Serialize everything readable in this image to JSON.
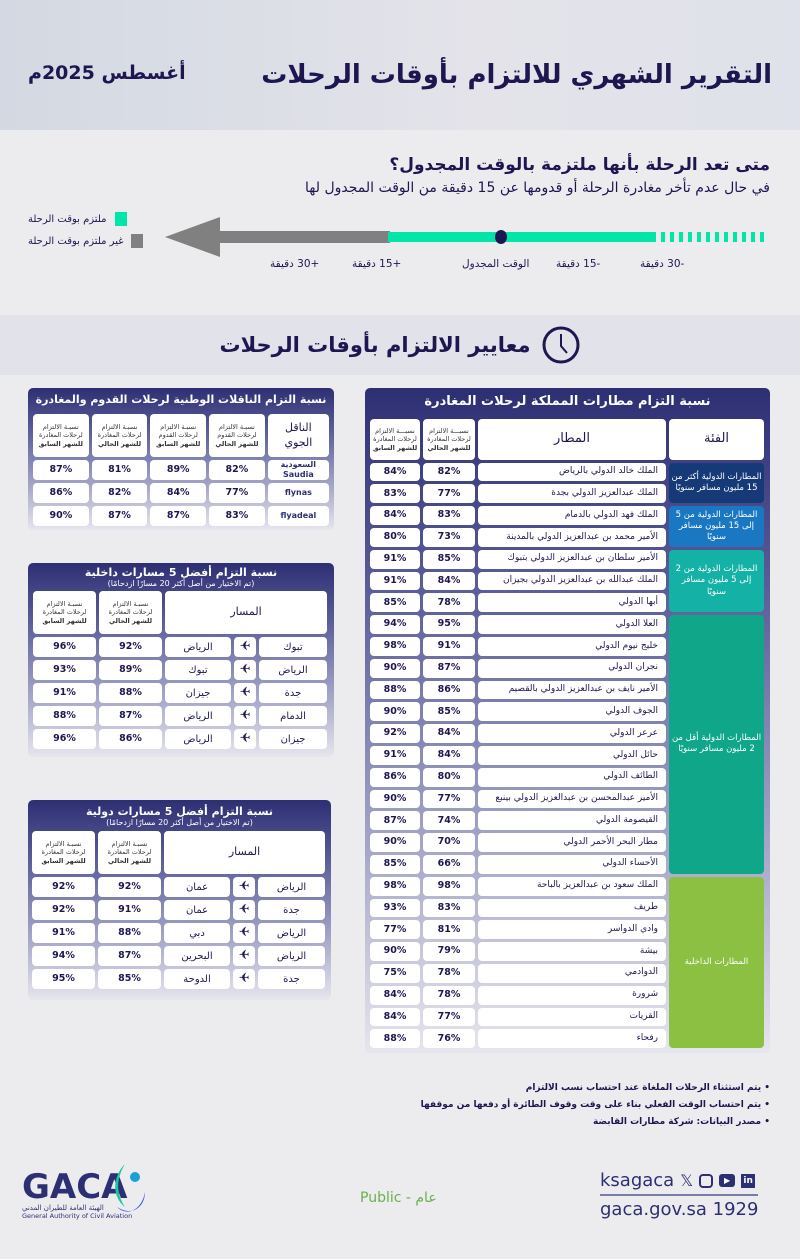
{
  "header": {
    "title": "التقرير الشهري للالتزام بأوقات الرحلات",
    "month": "أغسطس 2025م"
  },
  "definition": {
    "question": "متى تعد الرحلة بأنها ملتزمة بالوقت المجدول؟",
    "answer": "في حال عدم تأخر مغادرة الرحلة أو قدومها عن 15 دقيقة من الوقت المجدول لها",
    "legend": [
      {
        "label": "ملتزم بوقت الرحلة",
        "color": "#00e5a8"
      },
      {
        "label": "غير ملتزم بوقت الرحلة",
        "color": "#808080"
      }
    ],
    "timeline": {
      "plus30": "+30 دقيقة",
      "plus15": "+15 دقيقة",
      "scheduled": "الوقت المجدول",
      "minus15": "-15 دقيقة",
      "minus30": "-30 دقيقة"
    }
  },
  "section_title": "معايير الالتزام بأوقات الرحلات",
  "airports": {
    "title": "نسبة التزام مطارات المملكة لرحلات المغادرة",
    "headers": {
      "category": "الفئة",
      "airport": "المطار",
      "current": [
        "نسبـــة الالتزام",
        "لرحلات المغادرة",
        "للشهر الحالي"
      ],
      "previous": [
        "نسبـــة الالتزام",
        "لرحلات المغادرة",
        "للشهر السابق"
      ]
    },
    "categories": [
      {
        "label": "المطارات الدولية أكثر من 15 مليون مسافر سنويًا",
        "color": "#163a78",
        "rows": 2
      },
      {
        "label": "المطارات الدولية من 5 إلى 15 مليون مسافر سنويًا",
        "color": "#1a78c2",
        "rows": 2
      },
      {
        "label": "المطارات الدولية من 2 إلى 5 مليون مسافر سنويًا",
        "color": "#14b2a6",
        "rows": 3
      },
      {
        "label": "المطارات الدولية أقل من 2 مليون مسافر سنويًا",
        "color": "#10a68a",
        "rows": 12
      },
      {
        "label": "المطارات الداخلية",
        "color": "#8cc043",
        "rows": 8
      }
    ],
    "rows": [
      {
        "name": "الملك خالد الدولي بالرياض",
        "current": "82%",
        "previous": "84%"
      },
      {
        "name": "الملك عبدالعزيز الدولي بجدة",
        "current": "77%",
        "previous": "83%"
      },
      {
        "name": "الملك فهد الدولي بالدمام",
        "current": "83%",
        "previous": "84%"
      },
      {
        "name": "الأمير محمد بن عبدالعزيز الدولي بالمدينة",
        "current": "73%",
        "previous": "80%"
      },
      {
        "name": "الأمير سلطان بن عبدالعزيز الدولي بتبوك",
        "current": "85%",
        "previous": "91%"
      },
      {
        "name": "الملك عبدالله بن عبدالعزيز الدولي بجيزان",
        "current": "84%",
        "previous": "91%"
      },
      {
        "name": "أبها الدولي",
        "current": "78%",
        "previous": "85%"
      },
      {
        "name": "العلا الدولي",
        "current": "95%",
        "previous": "94%"
      },
      {
        "name": "خليج نيوم الدولي",
        "current": "91%",
        "previous": "98%"
      },
      {
        "name": "نجران الدولي",
        "current": "87%",
        "previous": "90%"
      },
      {
        "name": "الأمير نايف بن عبدالعزيز الدولي بالقصيم",
        "current": "86%",
        "previous": "88%"
      },
      {
        "name": "الجوف الدولي",
        "current": "85%",
        "previous": "90%"
      },
      {
        "name": "عرعر الدولي",
        "current": "84%",
        "previous": "92%"
      },
      {
        "name": "حائل الدولي",
        "current": "84%",
        "previous": "91%"
      },
      {
        "name": "الطائف الدولي",
        "current": "80%",
        "previous": "86%"
      },
      {
        "name": "الأمير عبدالمحسن بن عبدالعزيز الدولي بينبع",
        "current": "77%",
        "previous": "90%"
      },
      {
        "name": "القيصومة الدولي",
        "current": "74%",
        "previous": "87%"
      },
      {
        "name": "مطار البحر الأحمر الدولي",
        "current": "70%",
        "previous": "90%"
      },
      {
        "name": "الأحساء الدولي",
        "current": "66%",
        "previous": "85%"
      },
      {
        "name": "الملك سعود بن عبدالعزيز بالباحة",
        "current": "98%",
        "previous": "98%"
      },
      {
        "name": "طريف",
        "current": "83%",
        "previous": "93%"
      },
      {
        "name": "وادي الدواسر",
        "current": "81%",
        "previous": "77%"
      },
      {
        "name": "بيشة",
        "current": "79%",
        "previous": "90%"
      },
      {
        "name": "الدوادمي",
        "current": "78%",
        "previous": "75%"
      },
      {
        "name": "شرورة",
        "current": "78%",
        "previous": "84%"
      },
      {
        "name": "القريات",
        "current": "77%",
        "previous": "84%"
      },
      {
        "name": "رفحاء",
        "current": "76%",
        "previous": "88%"
      }
    ]
  },
  "carriers": {
    "title": "نسبة التزام الناقلات الوطنية لرحلات القدوم والمغادرة",
    "headers": {
      "carrier": "الناقل الجوي",
      "arr_cur": [
        "نسبـة الالتزام",
        "لرحلات القدوم",
        "للشهر الحالي"
      ],
      "arr_prev": [
        "نسبـة الالتزام",
        "لرحلات القدوم",
        "للشهر السابق"
      ],
      "dep_cur": [
        "نسبـة الالتزام",
        "لرحلات المغادرة",
        "للشهر الحالي"
      ],
      "dep_prev": [
        "نسبـة الالتزام",
        "لرحلات المغادرة",
        "للشهر السابق"
      ]
    },
    "rows": [
      {
        "carrier": "السعودية Saudia",
        "arr_cur": "82%",
        "arr_prev": "89%",
        "dep_cur": "81%",
        "dep_prev": "87%"
      },
      {
        "carrier": "flynas",
        "arr_cur": "77%",
        "arr_prev": "84%",
        "dep_cur": "82%",
        "dep_prev": "86%"
      },
      {
        "carrier": "flyadeal",
        "arr_cur": "83%",
        "arr_prev": "87%",
        "dep_cur": "87%",
        "dep_prev": "90%"
      }
    ]
  },
  "domestic_routes": {
    "title": "نسبة التزام أفضل 5 مسارات داخلية",
    "subtitle": "(تم الاختيار من أصل أكثر 20 مسارًا ازدحامًا)",
    "headers": {
      "route": "المسار",
      "current": [
        "نسبـة الالتزام",
        "لرحلات المغادرة",
        "للشهر الحالي"
      ],
      "previous": [
        "نسبـة الالتزام",
        "لرحلات المغادرة",
        "للشهر السابق"
      ]
    },
    "rows": [
      {
        "from": "تبوك",
        "to": "الرياض",
        "current": "92%",
        "previous": "96%"
      },
      {
        "from": "الرياض",
        "to": "تبوك",
        "current": "89%",
        "previous": "93%"
      },
      {
        "from": "جدة",
        "to": "جيزان",
        "current": "88%",
        "previous": "91%"
      },
      {
        "from": "الدمام",
        "to": "الرياض",
        "current": "87%",
        "previous": "88%"
      },
      {
        "from": "جيزان",
        "to": "الرياض",
        "current": "86%",
        "previous": "96%"
      }
    ]
  },
  "international_routes": {
    "title": "نسبة التزام أفضل 5 مسارات دولية",
    "subtitle": "(تم الاختيار من أصل أكثر 20 مسارًا ازدحامًا)",
    "headers": {
      "route": "المسار",
      "current": [
        "نسبـة الالتزام",
        "لرحلات المغادرة",
        "للشهر الحالي"
      ],
      "previous": [
        "نسبـة الالتزام",
        "لرحلات المغادرة",
        "للشهر السابق"
      ]
    },
    "rows": [
      {
        "from": "الرياض",
        "to": "عمان",
        "current": "92%",
        "previous": "92%"
      },
      {
        "from": "جدة",
        "to": "عمان",
        "current": "91%",
        "previous": "92%"
      },
      {
        "from": "الرياض",
        "to": "دبي",
        "current": "88%",
        "previous": "91%"
      },
      {
        "from": "الرياض",
        "to": "البحرين",
        "current": "87%",
        "previous": "94%"
      },
      {
        "from": "جدة",
        "to": "الدوحة",
        "current": "85%",
        "previous": "95%"
      }
    ]
  },
  "notes": [
    "يتم استثناء الرحلات الملغاة عند احتساب نسب الالتزام",
    "يتم احتساب الوقت الفعلي بناء على وقت وقوف الطائرة أو دفعها من موقفها",
    "مصدر البيانات: شركة مطارات القابضة"
  ],
  "footer": {
    "logo": "GACA",
    "logo_ar": "الهيئة العامة للطيران المدني",
    "logo_en": "General Authority of Civil Aviation",
    "classification": "Public - عام",
    "handle": "ksagaca",
    "website": "gaca.gov.sa 1929",
    "social_icons": [
      "x-icon",
      "instagram-icon",
      "youtube-icon",
      "linkedin-icon"
    ],
    "accent": "#6ab04c"
  }
}
